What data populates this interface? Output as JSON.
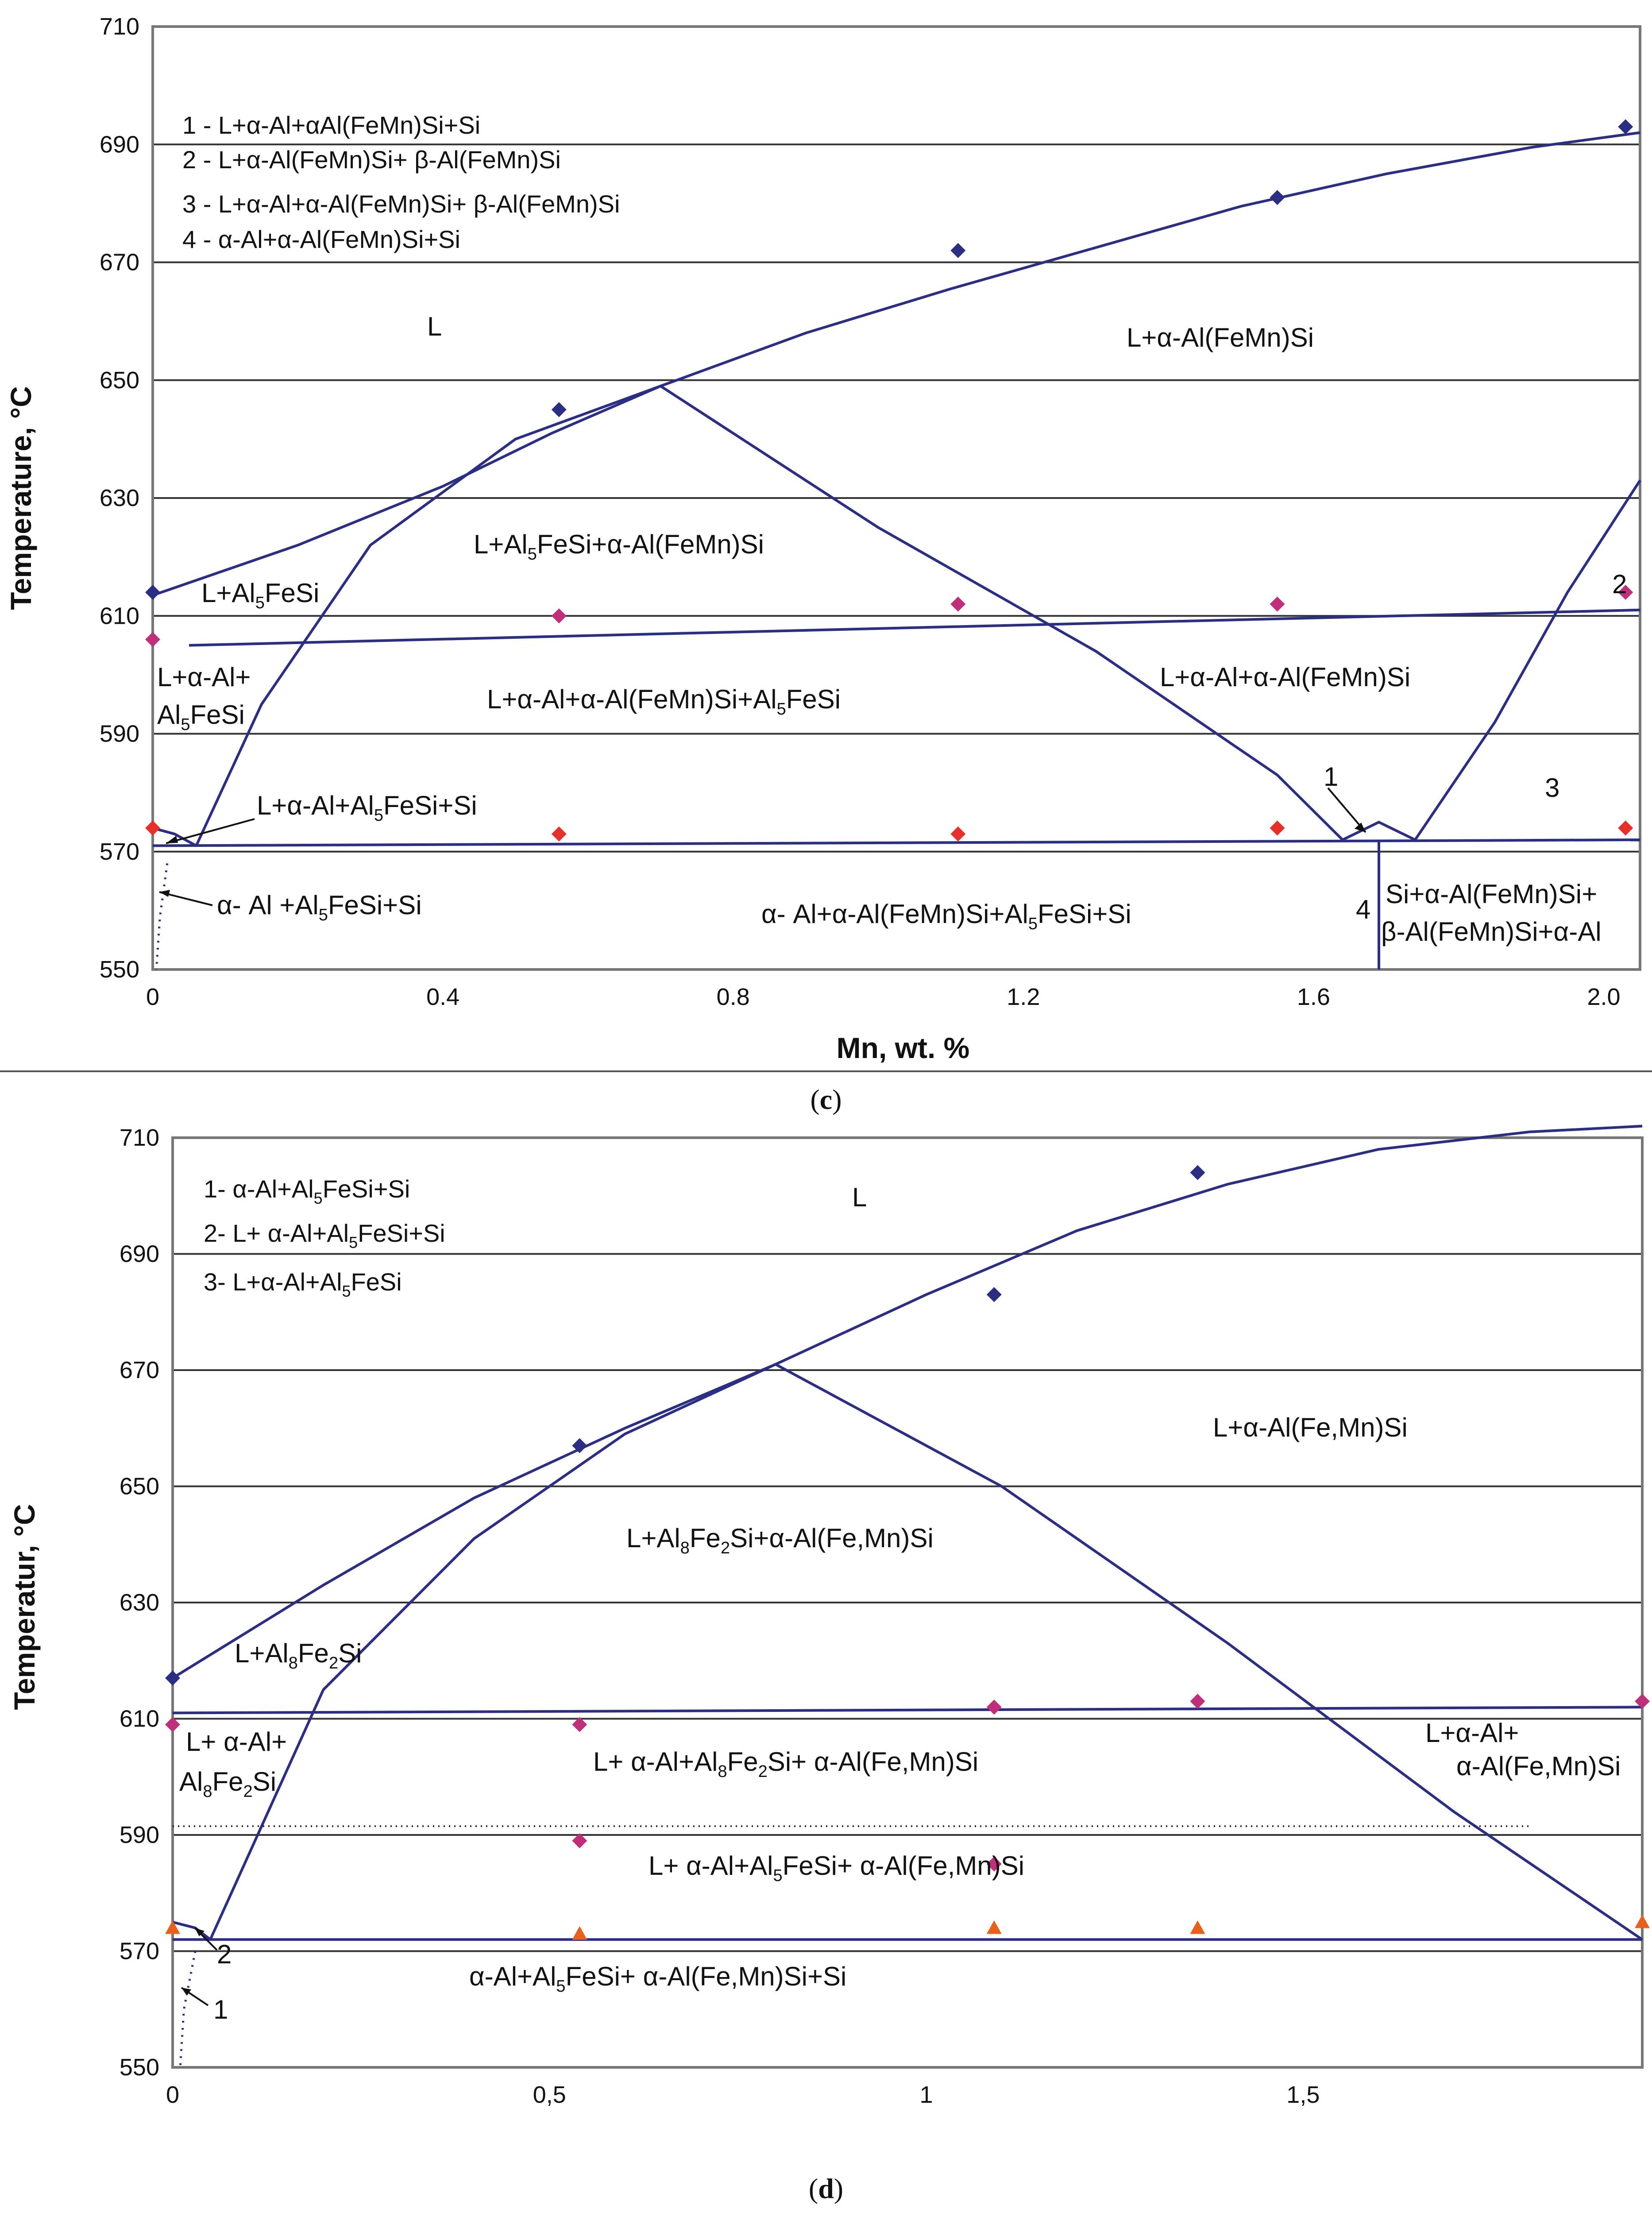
{
  "charts": [
    {
      "id": "c",
      "caption_letter": "c",
      "xlabel": "Mn, wt. %",
      "ylabel": "Temperature, °C",
      "x_ticks": [
        "0",
        "0.4",
        "0.8",
        "1.2",
        "1.6",
        "2.0"
      ],
      "y_ticks": [
        "550",
        "570",
        "590",
        "610",
        "630",
        "650",
        "670",
        "690",
        "710"
      ],
      "legend": [
        "1 - L+α-Al+αAl(FeMn)Si+Si",
        "2 - L+α-Al(FeMn)Si+ β-Al(FeMn)Si",
        "3 - L+α-Al+α-Al(FeMn)Si+ β-Al(FeMn)Si",
        "4 - α-Al+α-Al(FeMn)Si+Si"
      ],
      "regions": {
        "L": "L",
        "l_alfemnsi": "L+α-Al(FeMn)Si",
        "l_al5fesi_alfemnsi_pre": "L+Al",
        "l_al5fesi_alfemnsi_sub": "5",
        "l_al5fesi_alfemnsi_post": "FeSi+α-Al(FeMn)Si",
        "l_al5fesi_pre": "L+Al",
        "l_al5fesi_sub": "5",
        "l_al5fesi_post": "FeSi",
        "l_aal_line1": "L+α-Al+",
        "l_aal_line2_pre": "Al",
        "l_aal_line2_sub": "5",
        "l_aal_line2_post": "FeSi",
        "four_phase_pre": "L+α-Al+α-Al(FeMn)Si+Al",
        "four_phase_sub": "5",
        "four_phase_post": "FeSi",
        "l_aal_alfemnsi": "L+α-Al+α-Al(FeMn)Si",
        "l_aal_al5fesi_si_pre": "L+α-Al+Al",
        "l_aal_al5fesi_si_sub": "5",
        "l_aal_al5fesi_si_post": "FeSi+Si",
        "solid_left_pre": "α- Al +Al",
        "solid_left_sub": "5",
        "solid_left_post": "FeSi+Si",
        "solid_mid_pre": "α- Al+α-Al(FeMn)Si+Al",
        "solid_mid_sub": "5",
        "solid_mid_post": "FeSi+Si",
        "solid_right_1": "Si+α-Al(FeMn)Si+",
        "solid_right_2": "β-Al(FeMn)Si+α-Al",
        "marker_1": "1",
        "marker_2": "2",
        "marker_3": "3",
        "marker_4": "4"
      }
    },
    {
      "id": "d",
      "caption_letter": "d",
      "xlabel": "",
      "ylabel": "Temperatur, °C",
      "x_ticks": [
        "0",
        "0,5",
        "1",
        "1,5"
      ],
      "y_ticks": [
        "550",
        "570",
        "590",
        "610",
        "630",
        "650",
        "670",
        "690",
        "710"
      ],
      "legend": [
        {
          "pre": "1-  α-Al+Al",
          "sub": "5",
          "post": "FeSi+Si"
        },
        {
          "pre": "2- L+ α-Al+Al",
          "sub": "5",
          "post": "FeSi+Si"
        },
        {
          "pre": "3- L+α-Al+Al",
          "sub": "5",
          "post": "FeSi"
        }
      ],
      "regions": {
        "L": "L",
        "l_alfemnsi": "L+α-Al(Fe,Mn)Si",
        "l_al8_pre": "L+Al",
        "l_al8_sub1": "8",
        "l_al8_mid": "Fe",
        "l_al8_sub2": "2",
        "l_al8_post": "Si+α-Al(Fe,Mn)Si",
        "l_al8fe2si_pre": "L+Al",
        "l_al8fe2si_sub1": "8",
        "l_al8fe2si_mid": "Fe",
        "l_al8fe2si_sub2": "2",
        "l_al8fe2si_post": "Si",
        "l_aal_line1": "L+ α-Al+",
        "l_aal_line2_pre": "Al",
        "l_aal_line2_sub1": "8",
        "l_aal_line2_mid": "Fe",
        "l_aal_line2_sub2": "2",
        "l_aal_line2_post": "Si",
        "upper4_pre": "L+ α-Al+Al",
        "upper4_sub1": "8",
        "upper4_mid": "Fe",
        "upper4_sub2": "2",
        "upper4_post": "Si+ α-Al(Fe,Mn)Si",
        "right_line1": "L+α-Al+",
        "right_line2": "α-Al(Fe,Mn)Si",
        "lower4_pre": "L+ α-Al+Al",
        "lower4_sub": "5",
        "lower4_post": "FeSi+ α-Al(Fe,Mn)Si",
        "solid_pre": "α-Al+Al",
        "solid_sub": "5",
        "solid_post": "FeSi+ α-Al(Fe,Mn)Si+Si",
        "marker_1": "1",
        "marker_2": "2"
      }
    }
  ],
  "chart_data": [
    {
      "type": "scatter",
      "xlabel": "Mn, wt. %",
      "ylabel": "Temperature, °C",
      "xlim": [
        0,
        2.05
      ],
      "ylim": [
        550,
        710
      ],
      "grid": true,
      "series": [
        {
          "marker": "diamond",
          "color": "#2b2e82",
          "x": [
            0,
            0.56,
            1.11,
            1.55,
            2.03
          ],
          "y": [
            614,
            645,
            672,
            681,
            693
          ]
        },
        {
          "marker": "diamond",
          "color": "#c0307a",
          "x": [
            0,
            0.56,
            1.11,
            1.55,
            2.03
          ],
          "y": [
            606,
            610,
            612,
            612,
            614
          ]
        },
        {
          "marker": "diamond",
          "color": "#e8302a",
          "x": [
            0,
            0.56,
            1.11,
            1.55,
            2.03
          ],
          "y": [
            574,
            573,
            573,
            574,
            574
          ]
        }
      ],
      "phase_lines": [
        {
          "style": "solid",
          "x": [
            0,
            0.2,
            0.4,
            0.55,
            0.7,
            0.9,
            1.1,
            1.3,
            1.5,
            1.7,
            1.9,
            2.05
          ],
          "y": [
            613.5,
            622,
            632,
            641,
            649,
            658,
            665.5,
            672.5,
            679.5,
            685,
            689.5,
            692
          ]
        },
        {
          "style": "solid",
          "x": [
            0.06,
            0.15,
            0.3,
            0.5,
            0.7
          ],
          "y": [
            571,
            595,
            622,
            640,
            649
          ]
        },
        {
          "style": "solid",
          "x": [
            0.7,
            1.0,
            1.3,
            1.55,
            1.64
          ],
          "y": [
            649,
            625,
            604,
            583,
            572
          ]
        },
        {
          "style": "solid",
          "x": [
            0.05,
            2.05
          ],
          "y": [
            605,
            611
          ]
        },
        {
          "style": "solid",
          "x": [
            0,
            2.05
          ],
          "y": [
            571,
            572
          ]
        },
        {
          "style": "solid",
          "x": [
            1.64,
            1.69,
            1.74
          ],
          "y": [
            572,
            575,
            572
          ]
        },
        {
          "style": "solid",
          "x": [
            1.74,
            1.85,
            1.95,
            2.05
          ],
          "y": [
            572,
            592,
            614,
            633
          ]
        },
        {
          "style": "solid",
          "x": [
            1.69,
            1.69
          ],
          "y": [
            572,
            550
          ]
        },
        {
          "style": "solid",
          "x": [
            0,
            0.03,
            0.06
          ],
          "y": [
            574,
            573,
            571
          ]
        },
        {
          "style": "dotted",
          "x": [
            0.02,
            0.01,
            0.005
          ],
          "y": [
            568,
            559,
            550
          ]
        }
      ]
    },
    {
      "type": "scatter",
      "xlabel": "",
      "ylabel": "Temperatur, °C",
      "xlim": [
        0,
        1.95
      ],
      "ylim": [
        550,
        710
      ],
      "grid": true,
      "series": [
        {
          "marker": "diamond",
          "color": "#2b2e82",
          "x": [
            0,
            0.54,
            1.09,
            1.36
          ],
          "y": [
            617,
            657,
            683,
            704
          ]
        },
        {
          "marker": "diamond",
          "color": "#c0307a",
          "x": [
            0,
            0.54,
            1.09,
            1.36,
            1.95
          ],
          "y": [
            609,
            609,
            612,
            613,
            613
          ]
        },
        {
          "marker": "diamond",
          "color": "#c0307a",
          "x": [
            0.54,
            1.09
          ],
          "y": [
            589,
            585
          ]
        },
        {
          "marker": "triangle",
          "color": "#e8601a",
          "x": [
            0,
            0.54,
            1.09,
            1.36,
            1.95
          ],
          "y": [
            574,
            573,
            574,
            574,
            575
          ]
        }
      ],
      "phase_lines": [
        {
          "style": "solid",
          "x": [
            0,
            0.2,
            0.4,
            0.6,
            0.8,
            1.0,
            1.2,
            1.4,
            1.6,
            1.8,
            1.95
          ],
          "y": [
            617,
            633,
            648,
            660,
            671,
            683,
            694,
            702,
            708,
            711,
            712
          ]
        },
        {
          "style": "solid",
          "x": [
            0.05,
            0.2,
            0.4,
            0.6,
            0.8
          ],
          "y": [
            572,
            615,
            641,
            659,
            671
          ]
        },
        {
          "style": "solid",
          "x": [
            0.8,
            1.1,
            1.4,
            1.7,
            1.95
          ],
          "y": [
            671,
            650,
            623,
            594,
            572
          ]
        },
        {
          "style": "solid",
          "x": [
            0,
            1.95
          ],
          "y": [
            611,
            612
          ]
        },
        {
          "style": "solid",
          "x": [
            0,
            1.95
          ],
          "y": [
            572,
            572
          ]
        },
        {
          "style": "solid",
          "x": [
            0,
            0.03,
            0.05
          ],
          "y": [
            575,
            574,
            572
          ]
        },
        {
          "style": "dotted",
          "x": [
            0,
            1.8
          ],
          "y": [
            591.5,
            591.5
          ]
        },
        {
          "style": "dotted",
          "x": [
            0.03,
            0.015,
            0.01
          ],
          "y": [
            570,
            560,
            550
          ]
        }
      ]
    }
  ]
}
